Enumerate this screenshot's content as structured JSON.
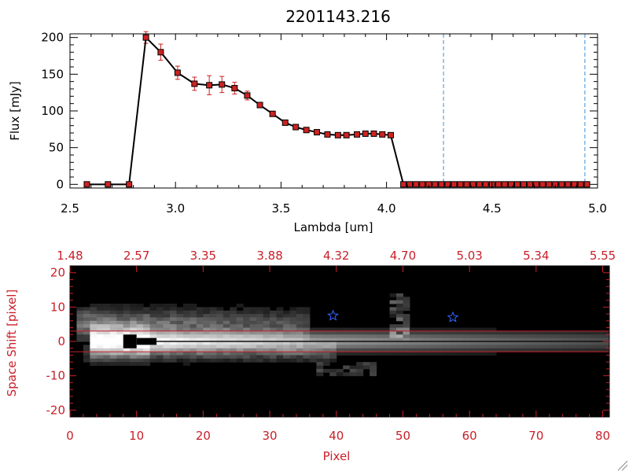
{
  "chart_data": [
    {
      "type": "line",
      "title": "2201143.216",
      "xlabel": "Lambda [um]",
      "ylabel": "Flux [mJy]",
      "xlim": [
        2.5,
        5.0
      ],
      "ylim": [
        -5,
        205
      ],
      "x_ticks": [
        "2.5",
        "3.0",
        "3.5",
        "4.0",
        "4.5",
        "5.0"
      ],
      "y_ticks": [
        "0",
        "50",
        "100",
        "150",
        "200"
      ],
      "series": [
        {
          "x": [
            2.58,
            2.68,
            2.78,
            2.86,
            2.93,
            3.01,
            3.09,
            3.16,
            3.22,
            3.28,
            3.34,
            3.4,
            3.46,
            3.52,
            3.57,
            3.62,
            3.67,
            3.72,
            3.77,
            3.81,
            3.86,
            3.9,
            3.94,
            3.98,
            4.02,
            4.08,
            4.11,
            4.14,
            4.17,
            4.2,
            4.23,
            4.26,
            4.29,
            4.32,
            4.35,
            4.38,
            4.41,
            4.44,
            4.47,
            4.5,
            4.53,
            4.56,
            4.59,
            4.62,
            4.65,
            4.68,
            4.71,
            4.74,
            4.77,
            4.8,
            4.83,
            4.86,
            4.89,
            4.92,
            4.95
          ],
          "y": [
            0,
            0,
            0,
            200,
            180,
            152,
            137,
            135,
            136,
            131,
            121,
            108,
            96,
            84,
            78,
            74,
            71,
            68,
            67,
            67,
            68,
            69,
            69,
            68,
            67,
            0,
            0,
            0,
            0,
            0,
            0,
            0,
            0,
            0,
            0,
            0,
            0,
            0,
            0,
            0,
            0,
            0,
            0,
            0,
            0,
            0,
            0,
            0,
            0,
            0,
            0,
            0,
            0,
            0,
            0
          ],
          "err": [
            0,
            0,
            0,
            8,
            11,
            9,
            9,
            13,
            11,
            8,
            6,
            3,
            3,
            2,
            2,
            2,
            2,
            2,
            1,
            1,
            1,
            1,
            1,
            1,
            1,
            0,
            0,
            0,
            0,
            0,
            0,
            0,
            0,
            0,
            0,
            0,
            0,
            0,
            0,
            0,
            0,
            0,
            0,
            0,
            0,
            0,
            0,
            0,
            0,
            0,
            0,
            0,
            0,
            0,
            0
          ]
        }
      ],
      "vertical_lines": [
        4.27,
        4.94
      ]
    },
    {
      "type": "heatmap",
      "xlabel": "Pixel",
      "ylabel": "Space Shift [pixel]",
      "xlim": [
        0,
        81
      ],
      "ylim": [
        -22,
        22
      ],
      "x_ticks": [
        "0",
        "10",
        "20",
        "30",
        "40",
        "50",
        "60",
        "70",
        "80"
      ],
      "y_ticks": [
        "-20",
        "-10",
        "0",
        "10",
        "20"
      ],
      "top_ticks": [
        "1.48",
        "2.57",
        "3.35",
        "3.88",
        "4.32",
        "4.70",
        "5.03",
        "5.34",
        "5.55"
      ],
      "aperture": [
        -3,
        3
      ],
      "stars": [
        {
          "x": 39.5,
          "y": 7.5
        },
        {
          "x": 57.5,
          "y": 7
        }
      ]
    }
  ],
  "colors": {
    "axis": "#000000",
    "accent_red": "#c8202a",
    "marker": "#cc2222",
    "dash": "#3b8fd6",
    "star": "#3366ff"
  }
}
